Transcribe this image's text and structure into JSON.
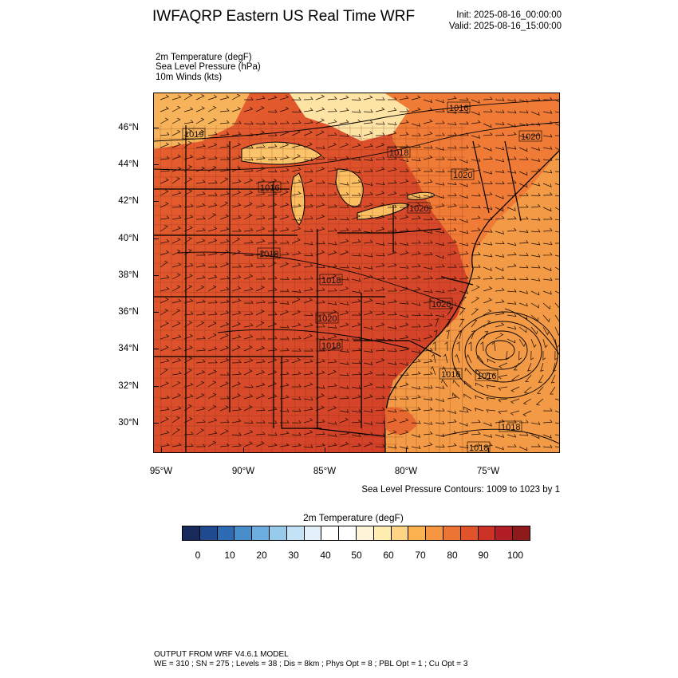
{
  "header": {
    "title": "IWFAQRP Eastern US Real Time WRF",
    "init": "Init: 2025-08-16_00:00:00",
    "valid": "Valid: 2025-08-16_15:00:00"
  },
  "fields": [
    "2m Temperature   (degF)",
    "Sea Level Pressure   (hPa)",
    "10m Winds   (kts)"
  ],
  "map": {
    "lat_labels": [
      "46°N",
      "44°N",
      "42°N",
      "40°N",
      "38°N",
      "36°N",
      "34°N",
      "32°N",
      "30°N"
    ],
    "lon_labels": [
      "95°W",
      "90°W",
      "85°W",
      "80°W",
      "75°W"
    ],
    "pressure_labels": [
      "1016",
      "1019",
      "1018",
      "1020",
      "1016",
      "1020",
      "1018",
      "1020",
      "1018",
      "1020",
      "1020",
      "1018",
      "1016",
      "1016",
      "1018",
      "1018"
    ],
    "colors": {
      "hot": "#d5412a",
      "warm": "#f07b36",
      "mild": "#f5a04a",
      "cool": "#fde3a4",
      "ocean": "#f29a45"
    }
  },
  "contours_note": "Sea Level Pressure Contours: 1009 to 1023 by 1",
  "colorbar": {
    "title": "2m Temperature  (degF)",
    "labels": [
      "0",
      "10",
      "20",
      "30",
      "40",
      "50",
      "60",
      "70",
      "80",
      "90",
      "100"
    ],
    "colors": [
      "#172a5b",
      "#1f4a8f",
      "#2e6bb5",
      "#4a8dcb",
      "#6aadde",
      "#97cbec",
      "#c3e2f5",
      "#e3f1fa",
      "#ffffff",
      "#ffffff",
      "#fef5d9",
      "#feecb1",
      "#fdd585",
      "#fbb24f",
      "#f69640",
      "#ec7434",
      "#e0532b",
      "#cb3326",
      "#b11e25",
      "#8e1a1c"
    ]
  },
  "footer": {
    "line1": "OUTPUT FROM WRF V4.6.1 MODEL",
    "line2": "WE = 310 ; SN = 275 ; Levels = 38 ; Dis = 8km ; Phys Opt = 8 ; PBL Opt = 1 ; Cu Opt = 3"
  }
}
